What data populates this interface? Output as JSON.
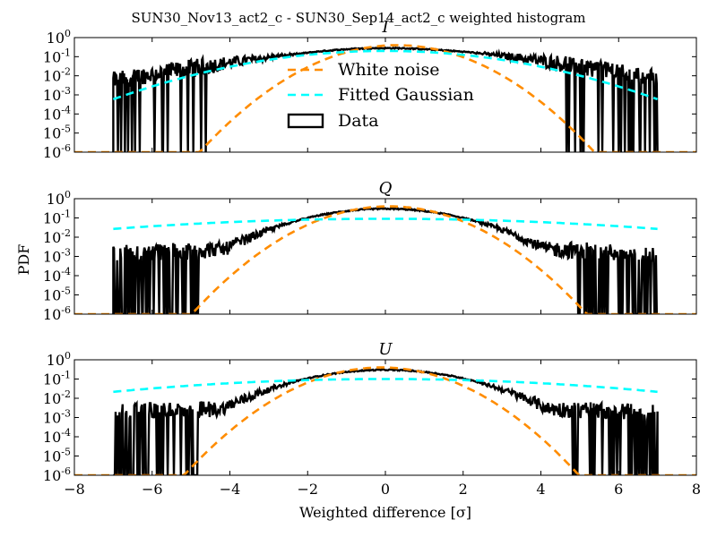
{
  "figure": {
    "title": "SUN30_Nov13_act2_c - SUN30_Sep14_act2_c weighted histogram",
    "xlabel": "Weighted difference [σ]",
    "ylabel": "PDF"
  },
  "legend": {
    "placement": "top-center (inside panel I)",
    "entries": [
      {
        "label": "White noise",
        "color": "#ff8c00",
        "style": "dashed"
      },
      {
        "label": "Fitted Gaussian",
        "color": "#00ffff",
        "style": "dashed"
      },
      {
        "label": "Data",
        "color": "#000000",
        "style": "step-outline"
      }
    ]
  },
  "colors": {
    "data": "#000000",
    "white_noise": "#ff8c00",
    "fitted_gaussian": "#00ffff"
  },
  "chart_data": [
    {
      "type": "line",
      "title": "I",
      "xlim": [
        -8,
        8
      ],
      "ylim": [
        1e-06,
        1
      ],
      "yscale": "log",
      "xticks": [
        "−8",
        "−6",
        "−4",
        "−2",
        "0",
        "2",
        "4",
        "6",
        "8"
      ],
      "yticks": [
        {
          "base": "10",
          "exp": "0"
        },
        {
          "base": "10",
          "exp": "-1"
        },
        {
          "base": "10",
          "exp": "-2"
        },
        {
          "base": "10",
          "exp": "-3"
        },
        {
          "base": "10",
          "exp": "-4"
        },
        {
          "base": "10",
          "exp": "-5"
        },
        {
          "base": "10",
          "exp": "-6"
        }
      ],
      "data_range": [
        -7,
        7
      ],
      "series": [
        {
          "name": "White noise",
          "kind": "gaussian",
          "mu": 0.3,
          "sigma": 1.0,
          "amplitude": 0.399
        },
        {
          "name": "Fitted Gaussian",
          "kind": "gaussian",
          "mu": 0.0,
          "sigma": 2.05,
          "amplitude": 0.2
        },
        {
          "name": "Data",
          "kind": "histogram",
          "x_range": [
            -7,
            7
          ],
          "peak": 0.28,
          "core_sigma": 1.9,
          "tail_level_at_7": 0.001,
          "noise_floor": 0.0003
        }
      ]
    },
    {
      "type": "line",
      "title": "Q",
      "xlim": [
        -8,
        8
      ],
      "ylim": [
        1e-06,
        1
      ],
      "yscale": "log",
      "xticks": [
        "−8",
        "−6",
        "−4",
        "−2",
        "0",
        "2",
        "4",
        "6",
        "8"
      ],
      "yticks": [
        {
          "base": "10",
          "exp": "0"
        },
        {
          "base": "10",
          "exp": "-1"
        },
        {
          "base": "10",
          "exp": "-2"
        },
        {
          "base": "10",
          "exp": "-3"
        },
        {
          "base": "10",
          "exp": "-4"
        },
        {
          "base": "10",
          "exp": "-5"
        },
        {
          "base": "10",
          "exp": "-6"
        }
      ],
      "data_range": [
        -7,
        7
      ],
      "series": [
        {
          "name": "White noise",
          "kind": "gaussian",
          "mu": 0.1,
          "sigma": 1.0,
          "amplitude": 0.399
        },
        {
          "name": "Fitted Gaussian",
          "kind": "gaussian",
          "mu": 0.0,
          "sigma": 4.5,
          "amplitude": 0.09
        },
        {
          "name": "Data",
          "kind": "histogram",
          "x_range": [
            -7,
            7
          ],
          "peak": 0.3,
          "core_sigma": 1.35,
          "tail_level_at_5": 0.002,
          "noise_floor": 0.0001
        }
      ]
    },
    {
      "type": "line",
      "title": "U",
      "xlim": [
        -8,
        8
      ],
      "ylim": [
        1e-06,
        1
      ],
      "yscale": "log",
      "xticks": [
        "−8",
        "−6",
        "−4",
        "−2",
        "0",
        "2",
        "4",
        "6",
        "8"
      ],
      "yticks": [
        {
          "base": "10",
          "exp": "0"
        },
        {
          "base": "10",
          "exp": "-1"
        },
        {
          "base": "10",
          "exp": "-2"
        },
        {
          "base": "10",
          "exp": "-3"
        },
        {
          "base": "10",
          "exp": "-4"
        },
        {
          "base": "10",
          "exp": "-5"
        },
        {
          "base": "10",
          "exp": "-6"
        }
      ],
      "data_range": [
        -7,
        7
      ],
      "series": [
        {
          "name": "White noise",
          "kind": "gaussian",
          "mu": -0.1,
          "sigma": 1.0,
          "amplitude": 0.399
        },
        {
          "name": "Fitted Gaussian",
          "kind": "gaussian",
          "mu": 0.0,
          "sigma": 4.0,
          "amplitude": 0.1
        },
        {
          "name": "Data",
          "kind": "histogram",
          "x_range": [
            -7,
            7
          ],
          "peak": 0.3,
          "core_sigma": 1.4,
          "tail_level_at_5": 0.003,
          "noise_floor": 0.0001
        }
      ]
    }
  ]
}
